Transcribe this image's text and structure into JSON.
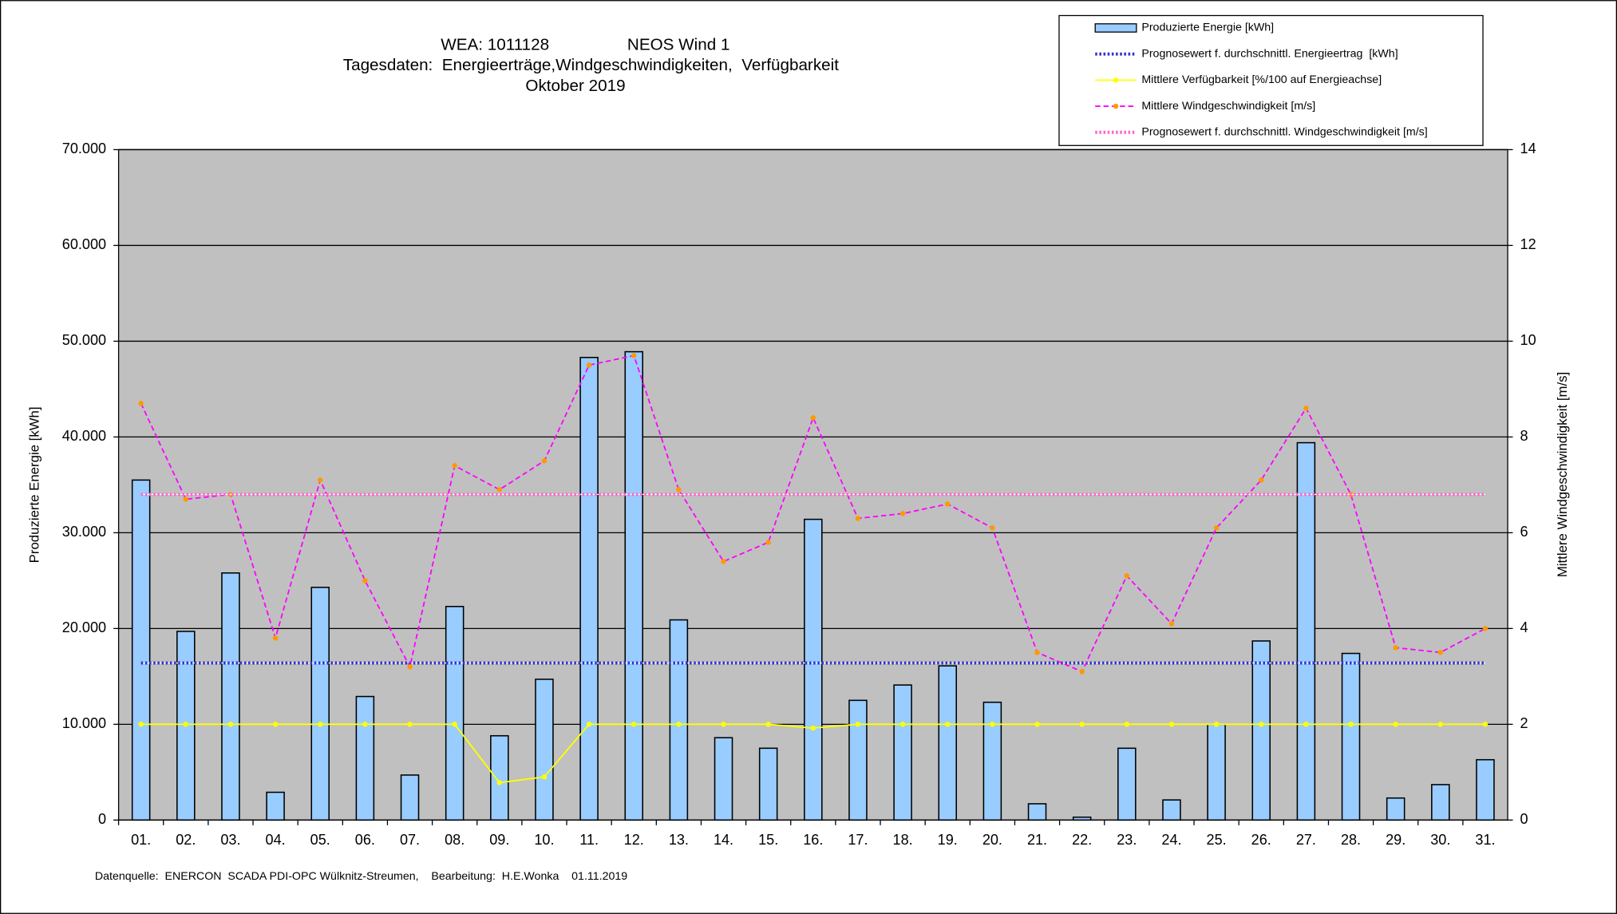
{
  "chart_data": {
    "type": "bar",
    "title": "WEA: 1011128",
    "title2": "NEOS Wind 1",
    "subtitle": "Tagesdaten:  Energieerträge,Windgeschwindigkeiten,  Verfügbarkeit",
    "subtitle2": "Oktober 2019",
    "y_label": "Produzierte Energie [kWh]",
    "y2_label": "Mittlere Windgeschwindigkeit [m/s]",
    "footer": "Datenquelle:  ENERCON  SCADA PDI-OPC Wülknitz-Streumen,    Bearbeitung:  H.E.Wonka    01.11.2019",
    "categories": [
      "01.",
      "02.",
      "03.",
      "04.",
      "05.",
      "06.",
      "07.",
      "08.",
      "09.",
      "10.",
      "11.",
      "12.",
      "13.",
      "14.",
      "15.",
      "16.",
      "17.",
      "18.",
      "19.",
      "20.",
      "21.",
      "22.",
      "23.",
      "24.",
      "25.",
      "26.",
      "27.",
      "28.",
      "29.",
      "30.",
      "31."
    ],
    "series": [
      {
        "name": "Produzierte Energie [kWh]",
        "style": "bar",
        "color": "#99ccff",
        "values": [
          35500,
          19700,
          25800,
          2900,
          24300,
          12900,
          4700,
          22300,
          8800,
          14700,
          48300,
          48900,
          20900,
          8600,
          7500,
          31400,
          12500,
          14100,
          16100,
          12300,
          1700,
          300,
          7500,
          2100,
          10000,
          18700,
          39400,
          17400,
          2300,
          3700,
          6300
        ]
      },
      {
        "name": "Prognosewert f. durchschnittl. Energieertrag  [kWh]",
        "style": "dotted",
        "color": "#3333cc",
        "values": [
          16400,
          16400,
          16400,
          16400,
          16400,
          16400,
          16400,
          16400,
          16400,
          16400,
          16400,
          16400,
          16400,
          16400,
          16400,
          16400,
          16400,
          16400,
          16400,
          16400,
          16400,
          16400,
          16400,
          16400,
          16400,
          16400,
          16400,
          16400,
          16400,
          16400,
          16400
        ]
      },
      {
        "name": "Mittlere Verfügbarkeit [%/100 auf Energieachse]",
        "style": "line",
        "color": "#ffff00",
        "marker_color": "#ffff00",
        "values": [
          10000,
          10000,
          10000,
          10000,
          10000,
          10000,
          10000,
          10000,
          3900,
          4500,
          10000,
          10000,
          10000,
          10000,
          10000,
          9600,
          10000,
          10000,
          10000,
          10000,
          10000,
          10000,
          10000,
          10000,
          10000,
          10000,
          10000,
          10000,
          10000,
          10000,
          10000
        ]
      },
      {
        "name": "Mittlere Windgeschwindigkeit [m/s]",
        "style": "dashed",
        "color": "#ff00ff",
        "marker_color": "#ff9900",
        "axis": "y2",
        "values": [
          8.7,
          6.7,
          6.8,
          3.8,
          7.1,
          5.0,
          3.2,
          7.4,
          6.9,
          7.5,
          9.5,
          9.7,
          6.9,
          5.4,
          5.8,
          8.4,
          6.3,
          6.4,
          6.6,
          6.1,
          3.5,
          3.1,
          5.1,
          4.1,
          6.1,
          7.1,
          8.6,
          6.8,
          3.6,
          3.5,
          4.0
        ]
      },
      {
        "name": "Prognosewert f. durchschnittl. Windgeschwindigkeit [m/s]",
        "style": "dotted",
        "color": "#ff66cc",
        "axis": "y2",
        "values": [
          6.8,
          6.8,
          6.8,
          6.8,
          6.8,
          6.8,
          6.8,
          6.8,
          6.8,
          6.8,
          6.8,
          6.8,
          6.8,
          6.8,
          6.8,
          6.8,
          6.8,
          6.8,
          6.8,
          6.8,
          6.8,
          6.8,
          6.8,
          6.8,
          6.8,
          6.8,
          6.8,
          6.8,
          6.8,
          6.8,
          6.8
        ]
      }
    ],
    "ylim": [
      0,
      70000
    ],
    "yticks": [
      0,
      {
        "value": 10000,
        "label": "10.000"
      },
      {
        "value": 20000,
        "label": "20.000"
      },
      {
        "value": 30000,
        "label": "30.000"
      },
      {
        "value": 40000,
        "label": "40.000"
      },
      {
        "value": 50000,
        "label": "50.000"
      },
      {
        "value": 60000,
        "label": "60.000"
      },
      {
        "value": 70000,
        "label": "70.000"
      }
    ],
    "y2lim": [
      0,
      14
    ],
    "y2ticks": [
      0,
      2,
      4,
      6,
      8,
      10,
      12,
      14
    ],
    "grid": true,
    "legend": "top-right",
    "plot_background": "#c0c0c0"
  }
}
